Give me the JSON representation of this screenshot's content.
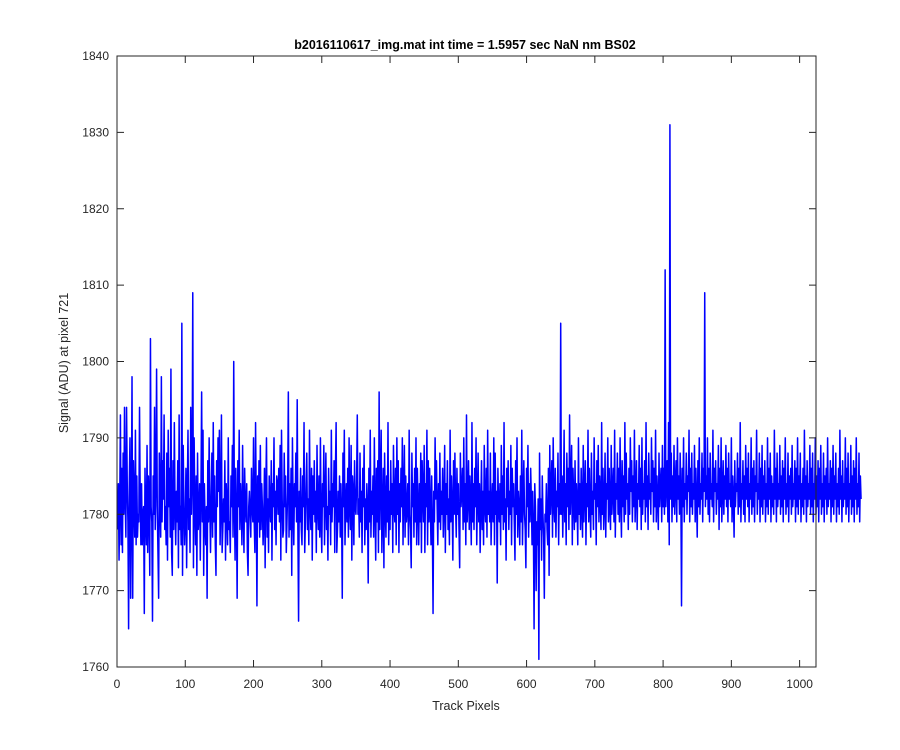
{
  "chart_data": {
    "type": "line",
    "title": "b2016110617_img.mat int time = 1.5957 sec  NaN nm BS02",
    "xlabel": "Track Pixels",
    "ylabel": "Signal (ADU) at pixel 721",
    "xlim": [
      0,
      1024
    ],
    "ylim": [
      1760,
      1840
    ],
    "xticks": [
      0,
      100,
      200,
      300,
      400,
      500,
      600,
      700,
      800,
      900,
      1000
    ],
    "yticks": [
      1760,
      1770,
      1780,
      1790,
      1800,
      1810,
      1820,
      1830,
      1840
    ],
    "grid": false,
    "line_color": "#0000ff",
    "series": [
      {
        "x_start": 1,
        "x_step": 1,
        "values": [
          1778,
          1784,
          1774,
          1781,
          1793,
          1776,
          1786,
          1775,
          1788,
          1780,
          1794,
          1782,
          1777,
          1794,
          1784,
          1779,
          1765,
          1784,
          1790,
          1769,
          1780,
          1798,
          1769,
          1787,
          1782,
          1777,
          1791,
          1776,
          1785,
          1777,
          1780,
          1779,
          1794,
          1782,
          1776,
          1784,
          1776,
          1780,
          1781,
          1767,
          1786,
          1780,
          1776,
          1789,
          1775,
          1785,
          1781,
          1772,
          1803,
          1781,
          1779,
          1766,
          1785,
          1780,
          1794,
          1778,
          1784,
          1799,
          1781,
          1775,
          1769,
          1788,
          1782,
          1777,
          1798,
          1779,
          1787,
          1782,
          1793,
          1778,
          1781,
          1776,
          1788,
          1774,
          1791,
          1781,
          1786,
          1777,
          1799,
          1775,
          1772,
          1787,
          1778,
          1792,
          1781,
          1776,
          1783,
          1779,
          1787,
          1773,
          1793,
          1778,
          1781,
          1776,
          1805,
          1772,
          1789,
          1781,
          1776,
          1779,
          1786,
          1773,
          1783,
          1791,
          1778,
          1782,
          1775,
          1794,
          1780,
          1785,
          1809,
          1773,
          1790,
          1781,
          1776,
          1785,
          1772,
          1788,
          1778,
          1780,
          1784,
          1774,
          1783,
          1796,
          1779,
          1791,
          1772,
          1784,
          1779,
          1776,
          1781,
          1769,
          1787,
          1779,
          1790,
          1781,
          1775,
          1782,
          1788,
          1777,
          1792,
          1779,
          1785,
          1776,
          1772,
          1787,
          1781,
          1790,
          1783,
          1791,
          1776,
          1781,
          1793,
          1775,
          1778,
          1782,
          1779,
          1787,
          1774,
          1784,
          1781,
          1776,
          1790,
          1778,
          1779,
          1775,
          1785,
          1781,
          1789,
          1777,
          1800,
          1781,
          1774,
          1786,
          1780,
          1769,
          1787,
          1781,
          1791,
          1778,
          1784,
          1781,
          1776,
          1789,
          1780,
          1775,
          1786,
          1781,
          1779,
          1784,
          1775,
          1772,
          1781,
          1783,
          1780,
          1777,
          1786,
          1781,
          1779,
          1790,
          1779,
          1775,
          1792,
          1781,
          1768,
          1785,
          1779,
          1787,
          1777,
          1789,
          1778,
          1784,
          1781,
          1776,
          1779,
          1786,
          1773,
          1783,
          1790,
          1777,
          1782,
          1775,
          1785,
          1781,
          1779,
          1787,
          1774,
          1784,
          1781,
          1790,
          1778,
          1783,
          1776,
          1785,
          1784,
          1780,
          1786,
          1779,
          1789,
          1774,
          1791,
          1782,
          1777,
          1778,
          1788,
          1781,
          1785,
          1775,
          1779,
          1783,
          1796,
          1777,
          1784,
          1778,
          1786,
          1772,
          1790,
          1781,
          1776,
          1784,
          1781,
          1788,
          1779,
          1795,
          1778,
          1766,
          1783,
          1779,
          1786,
          1778,
          1776,
          1785,
          1781,
          1792,
          1775,
          1779,
          1784,
          1788,
          1778,
          1782,
          1776,
          1791,
          1781,
          1778,
          1786,
          1774,
          1785,
          1780,
          1787,
          1779,
          1783,
          1775,
          1789,
          1781,
          1778,
          1785,
          1777,
          1790,
          1779,
          1775,
          1784,
          1781,
          1789,
          1776,
          1782,
          1788,
          1778,
          1781,
          1774,
          1786,
          1780,
          1783,
          1776,
          1791,
          1779,
          1784,
          1781,
          1787,
          1775,
          1786,
          1792,
          1775,
          1778,
          1783,
          1779,
          1785,
          1777,
          1784,
          1780,
          1769,
          1788,
          1781,
          1791,
          1776,
          1781,
          1784,
          1779,
          1786,
          1777,
          1790,
          1781,
          1778,
          1789,
          1774,
          1785,
          1783,
          1776,
          1787,
          1781,
          1780,
          1784,
          1793,
          1780,
          1782,
          1777,
          1788,
          1779,
          1783,
          1775,
          1786,
          1781,
          1789,
          1776,
          1782,
          1778,
          1784,
          1781,
          1771,
          1786,
          1779,
          1791,
          1777,
          1783,
          1780,
          1785,
          1777,
          1790,
          1781,
          1774,
          1786,
          1779,
          1787,
          1775,
          1796,
          1778,
          1784,
          1791,
          1775,
          1780,
          1786,
          1773,
          1788,
          1781,
          1777,
          1785,
          1779,
          1792,
          1776,
          1783,
          1778,
          1787,
          1780,
          1784,
          1775,
          1789,
          1781,
          1779,
          1786,
          1776,
          1790,
          1780,
          1787,
          1775,
          1784,
          1779,
          1786,
          1781,
          1790,
          1776,
          1783,
          1789,
          1777,
          1785,
          1779,
          1781,
          1784,
          1776,
          1791,
          1780,
          1778,
          1773,
          1788,
          1781,
          1784,
          1777,
          1786,
          1779,
          1790,
          1776,
          1786,
          1781,
          1776,
          1784,
          1779,
          1788,
          1775,
          1787,
          1783,
          1779,
          1789,
          1775,
          1784,
          1781,
          1791,
          1776,
          1787,
          1779,
          1786,
          1781,
          1776,
          1785,
          1778,
          1767,
          1783,
          1779,
          1790,
          1782,
          1787,
          1781,
          1776,
          1784,
          1779,
          1788,
          1778,
          1783,
          1780,
          1786,
          1777,
          1781,
          1789,
          1775,
          1784,
          1780,
          1787,
          1778,
          1782,
          1776,
          1791,
          1779,
          1785,
          1781,
          1774,
          1787,
          1780,
          1788,
          1781,
          1777,
          1786,
          1780,
          1784,
          1778,
          1773,
          1788,
          1781,
          1783,
          1786,
          1778,
          1790,
          1779,
          1784,
          1776,
          1793,
          1779,
          1782,
          1787,
          1778,
          1785,
          1781,
          1776,
          1792,
          1779,
          1784,
          1778,
          1786,
          1781,
          1790,
          1776,
          1782,
          1788,
          1779,
          1784,
          1775,
          1781,
          1787,
          1778,
          1783,
          1776,
          1789,
          1781,
          1779,
          1786,
          1777,
          1791,
          1780,
          1783,
          1779,
          1788,
          1776,
          1781,
          1784,
          1779,
          1790,
          1776,
          1788,
          1780,
          1783,
          1771,
          1786,
          1781,
          1779,
          1784,
          1776,
          1789,
          1780,
          1785,
          1778,
          1792,
          1779,
          1782,
          1774,
          1786,
          1781,
          1787,
          1778,
          1783,
          1780,
          1789,
          1776,
          1786,
          1781,
          1784,
          1779,
          1774,
          1787,
          1780,
          1790,
          1777,
          1783,
          1781,
          1776,
          1785,
          1779,
          1791,
          1776,
          1782,
          1787,
          1780,
          1778,
          1773,
          1786,
          1781,
          1789,
          1777,
          1784,
          1779,
          1786,
          1782,
          1776,
          1783,
          1778,
          1765,
          1784,
          1781,
          1770,
          1779,
          1776,
          1782,
          1761,
          1788,
          1778,
          1782,
          1774,
          1785,
          1780,
          1777,
          1769,
          1780,
          1779,
          1784,
          1778,
          1776,
          1786,
          1772,
          1789,
          1780,
          1783,
          1787,
          1777,
          1790,
          1781,
          1779,
          1786,
          1777,
          1783,
          1781,
          1788,
          1776,
          1784,
          1780,
          1805,
          1780,
          1785,
          1777,
          1782,
          1791,
          1779,
          1784,
          1776,
          1788,
          1781,
          1786,
          1778,
          1793,
          1780,
          1784,
          1789,
          1776,
          1786,
          1782,
          1778,
          1787,
          1779,
          1784,
          1781,
          1776,
          1790,
          1780,
          1784,
          1778,
          1786,
          1781,
          1777,
          1789,
          1779,
          1783,
          1787,
          1776,
          1784,
          1781,
          1791,
          1779,
          1786,
          1781,
          1777,
          1788,
          1780,
          1783,
          1778,
          1790,
          1782,
          1784,
          1776,
          1787,
          1781,
          1789,
          1779,
          1785,
          1782,
          1778,
          1792,
          1780,
          1786,
          1778,
          1781,
          1788,
          1777,
          1784,
          1782,
          1790,
          1779,
          1786,
          1781,
          1778,
          1789,
          1780,
          1783,
          1786,
          1779,
          1791,
          1777,
          1784,
          1782,
          1788,
          1780,
          1786,
          1779,
          1790,
          1782,
          1777,
          1787,
          1781,
          1785,
          1779,
          1792,
          1780,
          1788,
          1782,
          1784,
          1778,
          1786,
          1780,
          1790,
          1783,
          1787,
          1779,
          1785,
          1781,
          1791,
          1779,
          1783,
          1787,
          1778,
          1784,
          1782,
          1789,
          1781,
          1786,
          1778,
          1790,
          1780,
          1784,
          1782,
          1787,
          1779,
          1792,
          1781,
          1785,
          1778,
          1788,
          1782,
          1784,
          1780,
          1790,
          1783,
          1787,
          1779,
          1786,
          1781,
          1791,
          1779,
          1785,
          1782,
          1778,
          1788,
          1781,
          1784,
          1786,
          1779,
          1789,
          1781,
          1786,
          1780,
          1812,
          1781,
          1784,
          1787,
          1779,
          1792,
          1776,
          1831,
          1782,
          1788,
          1779,
          1785,
          1781,
          1789,
          1780,
          1784,
          1787,
          1779,
          1790,
          1782,
          1785,
          1780,
          1788,
          1783,
          1768,
          1786,
          1781,
          1790,
          1779,
          1784,
          1782,
          1788,
          1780,
          1785,
          1783,
          1791,
          1779,
          1786,
          1781,
          1788,
          1780,
          1784,
          1782,
          1789,
          1779,
          1786,
          1782,
          1777,
          1787,
          1781,
          1790,
          1780,
          1784,
          1782,
          1788,
          1779,
          1786,
          1783,
          1809,
          1781,
          1785,
          1782,
          1790,
          1780,
          1786,
          1779,
          1788,
          1782,
          1784,
          1781,
          1791,
          1779,
          1786,
          1783,
          1787,
          1780,
          1784,
          1782,
          1789,
          1778,
          1786,
          1781,
          1790,
          1779,
          1783,
          1787,
          1780,
          1785,
          1782,
          1789,
          1781,
          1786,
          1779,
          1788,
          1782,
          1784,
          1781,
          1790,
          1779,
          1785,
          1782,
          1777,
          1787,
          1781,
          1784,
          1783,
          1788,
          1780,
          1786,
          1781,
          1792,
          1779,
          1784,
          1782,
          1787,
          1780,
          1785,
          1779,
          1789,
          1782,
          1786,
          1781,
          1788,
          1779,
          1784,
          1782,
          1790,
          1780,
          1786,
          1781,
          1787,
          1779,
          1785,
          1783,
          1791,
          1780,
          1784,
          1782,
          1788,
          1779,
          1786,
          1781,
          1789,
          1780,
          1785,
          1782,
          1787,
          1779,
          1784,
          1781,
          1790,
          1780,
          1786,
          1782,
          1788,
          1779,
          1785,
          1781,
          1784,
          1780,
          1791,
          1782,
          1786,
          1779,
          1788,
          1781,
          1784,
          1782,
          1789,
          1780,
          1785,
          1781,
          1787,
          1779,
          1786,
          1782,
          1790,
          1780,
          1784,
          1781,
          1788,
          1779,
          1785,
          1782,
          1786,
          1780,
          1789,
          1781,
          1784,
          1782,
          1787,
          1779,
          1786,
          1781,
          1790,
          1780,
          1785,
          1782,
          1788,
          1779,
          1784,
          1781,
          1786,
          1780,
          1791,
          1782,
          1785,
          1779,
          1787,
          1781,
          1784,
          1782,
          1789,
          1780,
          1786,
          1781,
          1788,
          1779,
          1784,
          1782,
          1790,
          1780,
          1785,
          1781,
          1787,
          1779,
          1786,
          1782,
          1789,
          1780,
          1784,
          1781,
          1788,
          1779,
          1785,
          1782,
          1786,
          1780,
          1790,
          1781,
          1784,
          1782,
          1787,
          1779,
          1786,
          1781,
          1789,
          1780,
          1785,
          1782,
          1788,
          1779,
          1784,
          1781,
          1786,
          1780,
          1791,
          1782,
          1785,
          1779,
          1787,
          1781,
          1784,
          1782,
          1790,
          1780,
          1786,
          1781,
          1788,
          1779,
          1784,
          1782,
          1789,
          1780,
          1785,
          1781,
          1787,
          1779,
          1786,
          1782,
          1790,
          1780,
          1784,
          1781,
          1788,
          1779,
          1785,
          1782
        ]
      }
    ]
  }
}
